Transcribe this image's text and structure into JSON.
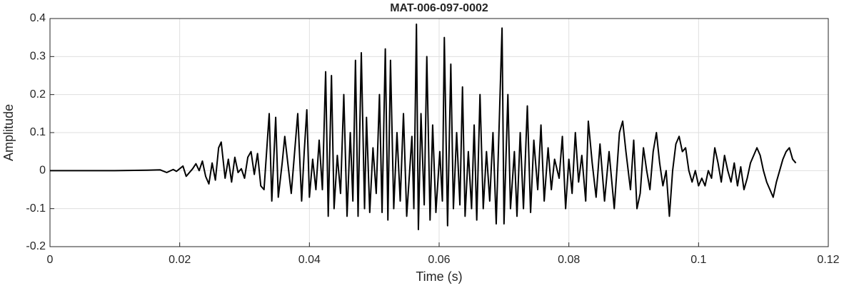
{
  "chart_data": {
    "type": "line",
    "title": "MAT-006-097-0002",
    "x_label": "Time (s)",
    "y_label": "Amplitude",
    "xlim": [
      0,
      0.12
    ],
    "ylim": [
      -0.2,
      0.4
    ],
    "xticks": [
      0,
      0.02,
      0.04,
      0.06,
      0.08,
      0.1,
      0.12
    ],
    "yticks": [
      -0.2,
      -0.1,
      0,
      0.1,
      0.2,
      0.3,
      0.4
    ],
    "grid": true,
    "series": [
      {
        "color": "#000000",
        "x": [
          0,
          0.005,
          0.01,
          0.015,
          0.017,
          0.018,
          0.019,
          0.0195,
          0.0205,
          0.021,
          0.022,
          0.0225,
          0.023,
          0.0235,
          0.024,
          0.0245,
          0.025,
          0.0255,
          0.026,
          0.0264,
          0.027,
          0.0275,
          0.028,
          0.0285,
          0.029,
          0.0295,
          0.03,
          0.0305,
          0.031,
          0.0315,
          0.032,
          0.0325,
          0.033,
          0.0338,
          0.0342,
          0.0348,
          0.0352,
          0.0358,
          0.0362,
          0.0368,
          0.0372,
          0.0382,
          0.0388,
          0.0392,
          0.0396,
          0.04,
          0.0405,
          0.041,
          0.0415,
          0.042,
          0.0425,
          0.0429,
          0.0434,
          0.0438,
          0.0443,
          0.0448,
          0.0453,
          0.0458,
          0.0463,
          0.0467,
          0.0471,
          0.0475,
          0.048,
          0.0485,
          0.0488,
          0.0493,
          0.0498,
          0.0503,
          0.0508,
          0.0512,
          0.0517,
          0.0521,
          0.0525,
          0.053,
          0.0535,
          0.054,
          0.0545,
          0.055,
          0.0558,
          0.0561,
          0.0565,
          0.0568,
          0.0572,
          0.0577,
          0.0581,
          0.0586,
          0.059,
          0.0595,
          0.0601,
          0.0605,
          0.0608,
          0.0613,
          0.0618,
          0.0622,
          0.0627,
          0.0632,
          0.0636,
          0.064,
          0.0645,
          0.065,
          0.0654,
          0.0658,
          0.0663,
          0.0668,
          0.0673,
          0.0678,
          0.0683,
          0.0688,
          0.0697,
          0.07,
          0.0706,
          0.071,
          0.0716,
          0.072,
          0.0725,
          0.073,
          0.0736,
          0.0741,
          0.0746,
          0.0752,
          0.0757,
          0.0762,
          0.0768,
          0.0773,
          0.0778,
          0.0785,
          0.079,
          0.0795,
          0.08,
          0.0805,
          0.081,
          0.0815,
          0.082,
          0.0826,
          0.083,
          0.0836,
          0.0842,
          0.0848,
          0.0855,
          0.0862,
          0.087,
          0.0878,
          0.0883,
          0.0888,
          0.0895,
          0.09,
          0.0905,
          0.091,
          0.0915,
          0.092,
          0.0925,
          0.093,
          0.0935,
          0.094,
          0.0945,
          0.095,
          0.0955,
          0.096,
          0.0965,
          0.097,
          0.0975,
          0.098,
          0.0985,
          0.099,
          0.0995,
          0.1,
          0.1005,
          0.101,
          0.1015,
          0.102,
          0.1025,
          0.103,
          0.1035,
          0.104,
          0.1045,
          0.105,
          0.1055,
          0.106,
          0.1065,
          0.107,
          0.1075,
          0.108,
          0.1085,
          0.109,
          0.1095,
          0.11,
          0.1105,
          0.111,
          0.1115,
          0.112,
          0.1125,
          0.113,
          0.1135,
          0.114,
          0.1145,
          0.115
        ],
        "values": [
          0,
          0,
          0,
          0.001,
          0.002,
          -0.005,
          0.003,
          -0.002,
          0.012,
          -0.015,
          0.005,
          0.018,
          0.0,
          0.025,
          -0.015,
          -0.035,
          0.02,
          -0.025,
          0.06,
          0.075,
          -0.02,
          0.03,
          -0.03,
          0.035,
          -0.005,
          0.005,
          -0.02,
          0.035,
          0.05,
          -0.01,
          0.045,
          -0.04,
          -0.05,
          0.15,
          -0.08,
          0.14,
          -0.07,
          0.02,
          0.09,
          0.0,
          -0.06,
          0.15,
          -0.08,
          0.05,
          0.16,
          -0.07,
          0.03,
          -0.05,
          0.08,
          -0.05,
          0.26,
          -0.12,
          0.25,
          -0.1,
          0.04,
          -0.06,
          0.2,
          -0.12,
          0.1,
          -0.08,
          0.29,
          -0.12,
          0.31,
          -0.1,
          0.14,
          -0.11,
          0.06,
          -0.06,
          0.2,
          -0.11,
          0.32,
          -0.13,
          0.29,
          -0.1,
          0.1,
          -0.08,
          0.15,
          -0.12,
          0.09,
          -0.1,
          0.385,
          -0.155,
          0.15,
          -0.09,
          0.3,
          -0.13,
          0.12,
          -0.11,
          0.05,
          -0.08,
          0.35,
          -0.145,
          0.28,
          -0.1,
          0.1,
          -0.09,
          0.22,
          -0.12,
          0.05,
          -0.1,
          0.12,
          -0.13,
          0.2,
          -0.1,
          0.05,
          -0.08,
          0.1,
          -0.14,
          0.375,
          -0.14,
          0.2,
          -0.1,
          0.05,
          -0.12,
          0.1,
          -0.1,
          0.17,
          -0.11,
          0.08,
          -0.05,
          0.12,
          -0.08,
          0.06,
          -0.05,
          0.03,
          -0.02,
          0.09,
          -0.1,
          0.03,
          -0.06,
          0.1,
          -0.03,
          0.04,
          -0.08,
          0.13,
          0.02,
          -0.07,
          0.07,
          -0.08,
          0.05,
          -0.1,
          0.1,
          0.13,
          0.05,
          -0.05,
          0.08,
          -0.1,
          -0.06,
          0.06,
          0.0,
          -0.05,
          0.05,
          0.1,
          0.02,
          -0.04,
          0.0,
          -0.12,
          0.0,
          0.07,
          0.09,
          0.05,
          0.06,
          0.0,
          -0.03,
          0.0,
          -0.04,
          -0.02,
          -0.04,
          0.0,
          -0.02,
          0.06,
          0.02,
          -0.03,
          0.04,
          0.0,
          -0.03,
          0.02,
          -0.04,
          0.01,
          -0.05,
          -0.02,
          0.02,
          0.04,
          0.06,
          0.04,
          0.0,
          -0.03,
          -0.05,
          -0.07,
          -0.03,
          0.0,
          0.03,
          0.05,
          0.06,
          0.03,
          0.02
        ]
      }
    ]
  }
}
